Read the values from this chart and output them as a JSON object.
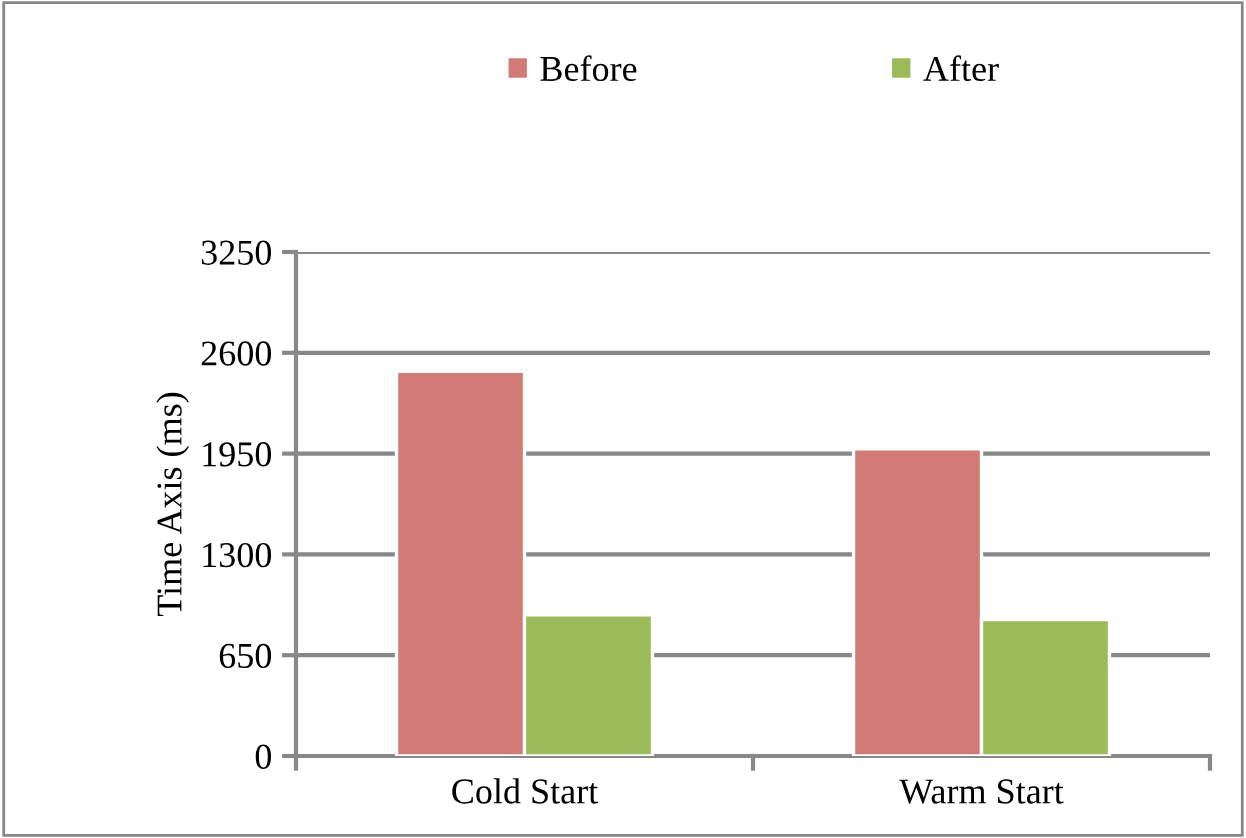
{
  "chart_data": {
    "type": "bar",
    "ylabel": "Time Axis (ms)",
    "categories": [
      "Cold Start",
      "Warm Start"
    ],
    "series": [
      {
        "name": "Before",
        "color": "#d07b76",
        "values": [
          2480,
          1980
        ]
      },
      {
        "name": "After",
        "color": "#9bbb59",
        "values": [
          910,
          880
        ]
      }
    ],
    "ylim": [
      0,
      3250
    ],
    "yticks": [
      0,
      650,
      1300,
      1950,
      2600,
      3250
    ],
    "grid": "y",
    "legend": "top"
  }
}
